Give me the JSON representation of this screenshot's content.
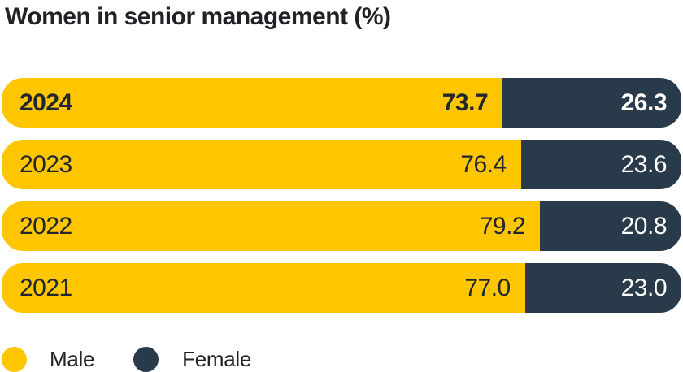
{
  "title": "Women in senior management (%)",
  "legend": {
    "male_label": "Male",
    "female_label": "Female"
  },
  "colors": {
    "male": "#FEC601",
    "female": "#293A4B",
    "text_dark": "#212730",
    "text_light": "#FFFFFF"
  },
  "rows": [
    {
      "year": "2024",
      "male_value": "73.7",
      "female_value": "26.3",
      "male_pct": 73.7,
      "female_pct": 26.3,
      "emphasized": true
    },
    {
      "year": "2023",
      "male_value": "76.4",
      "female_value": "23.6",
      "male_pct": 76.4,
      "female_pct": 23.6,
      "emphasized": false
    },
    {
      "year": "2022",
      "male_value": "79.2",
      "female_value": "20.8",
      "male_pct": 79.2,
      "female_pct": 20.8,
      "emphasized": false
    },
    {
      "year": "2021",
      "male_value": "77.0",
      "female_value": "23.0",
      "male_pct": 77.0,
      "female_pct": 23.0,
      "emphasized": false
    }
  ],
  "chart_data": {
    "type": "bar",
    "orientation": "horizontal",
    "stacked": true,
    "title": "Women in senior management (%)",
    "categories": [
      "2024",
      "2023",
      "2022",
      "2021"
    ],
    "series": [
      {
        "name": "Male",
        "values": [
          73.7,
          76.4,
          79.2,
          77.0
        ],
        "color": "#FEC601"
      },
      {
        "name": "Female",
        "values": [
          26.3,
          23.6,
          20.8,
          23.0
        ],
        "color": "#293A4B"
      }
    ],
    "value_range": [
      0,
      100
    ],
    "units": "%",
    "legend_position": "bottom",
    "grid": false,
    "highlighted_category": "2024",
    "data_labels": "inside-end"
  }
}
